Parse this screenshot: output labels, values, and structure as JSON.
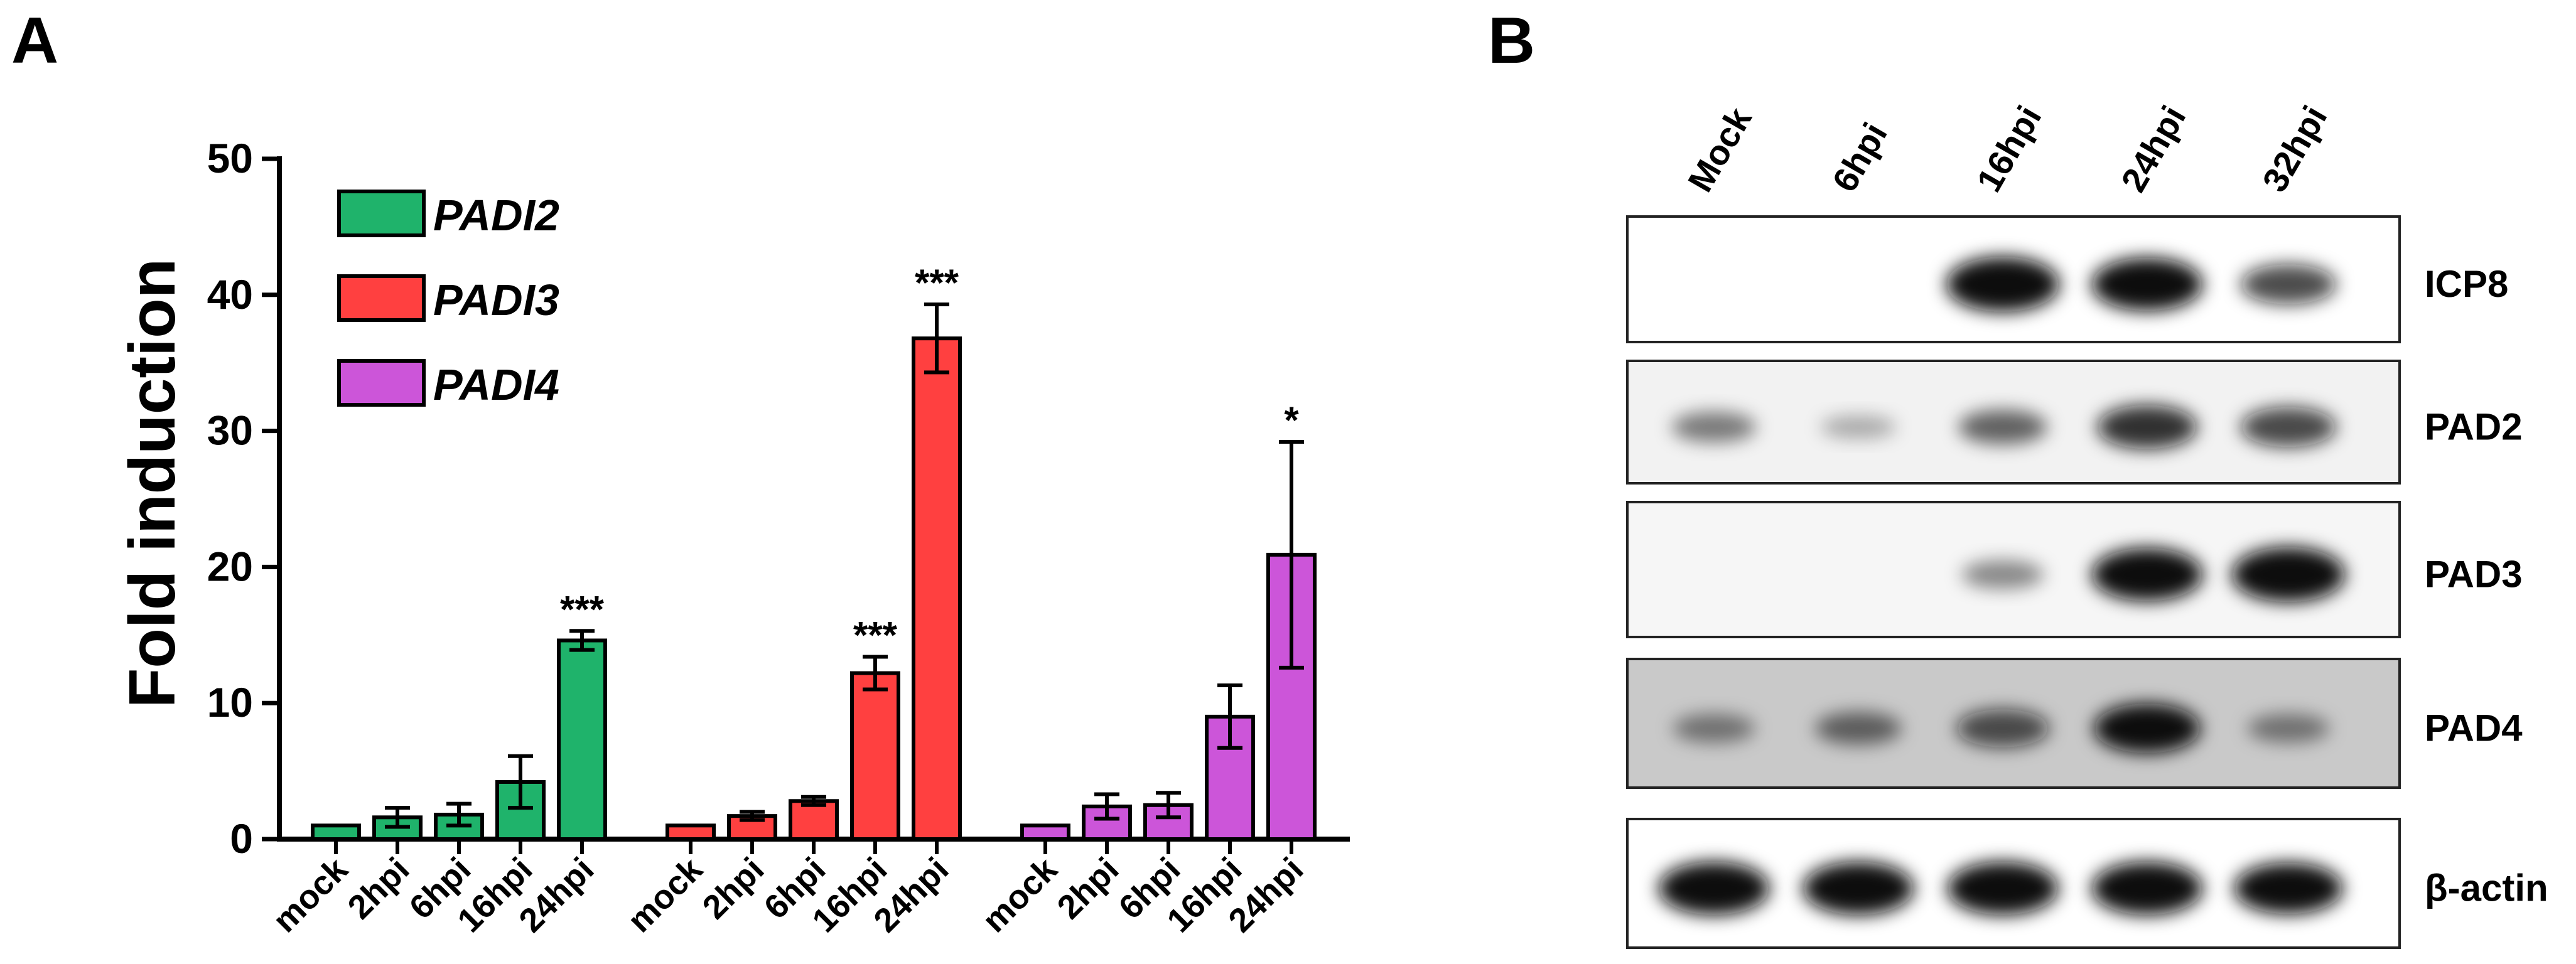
{
  "panels": {
    "a": "A",
    "b": "B"
  },
  "chart_data": {
    "type": "bar",
    "ylabel": "Fold induction",
    "xlabel": "",
    "ylim": [
      0,
      50
    ],
    "yticks": [
      0,
      10,
      20,
      30,
      40,
      50
    ],
    "categories": [
      "mock",
      "2hpi",
      "6hpi",
      "16hpi",
      "24hpi"
    ],
    "legend_position": "top-left",
    "series": [
      {
        "name": "PADI2",
        "color": "#1fb36b",
        "values": [
          1.0,
          1.6,
          1.8,
          4.2,
          14.6
        ],
        "errors": [
          0.1,
          0.7,
          0.8,
          1.9,
          0.7
        ],
        "significance": [
          "",
          "",
          "",
          "",
          "***"
        ]
      },
      {
        "name": "PADI3",
        "color": "#ff4040",
        "values": [
          1.0,
          1.7,
          2.8,
          12.2,
          36.8
        ],
        "errors": [
          0.1,
          0.3,
          0.3,
          1.2,
          2.5
        ],
        "significance": [
          "",
          "",
          "",
          "***",
          "***"
        ]
      },
      {
        "name": "PADI4",
        "color": "#cc55d9",
        "values": [
          1.0,
          2.4,
          2.5,
          9.0,
          20.9
        ],
        "errors": [
          0.1,
          0.9,
          0.9,
          2.3,
          8.3
        ],
        "significance": [
          "",
          "",
          "",
          "",
          "*"
        ]
      }
    ]
  },
  "blot": {
    "lanes": [
      "Mock",
      "6hpi",
      "16hpi",
      "24hpi",
      "32hpi"
    ],
    "rows": [
      {
        "protein": "ICP8",
        "bands": [
          0,
          0,
          1.0,
          0.95,
          0.6
        ],
        "background": "#ffffff"
      },
      {
        "protein": "PAD2",
        "bands": [
          0.35,
          0.15,
          0.45,
          0.7,
          0.6
        ],
        "background": "#f2f2f2"
      },
      {
        "protein": "PAD3",
        "bands": [
          0,
          0,
          0.3,
          0.95,
          1.0
        ],
        "background": "#f6f6f6"
      },
      {
        "protein": "PAD4",
        "bands": [
          0.3,
          0.4,
          0.55,
          0.85,
          0.3
        ],
        "background": "#c9c9c9"
      },
      {
        "protein": "β-actin",
        "bands": [
          0.95,
          0.95,
          0.95,
          0.95,
          0.9
        ],
        "background": "#ffffff"
      }
    ]
  }
}
